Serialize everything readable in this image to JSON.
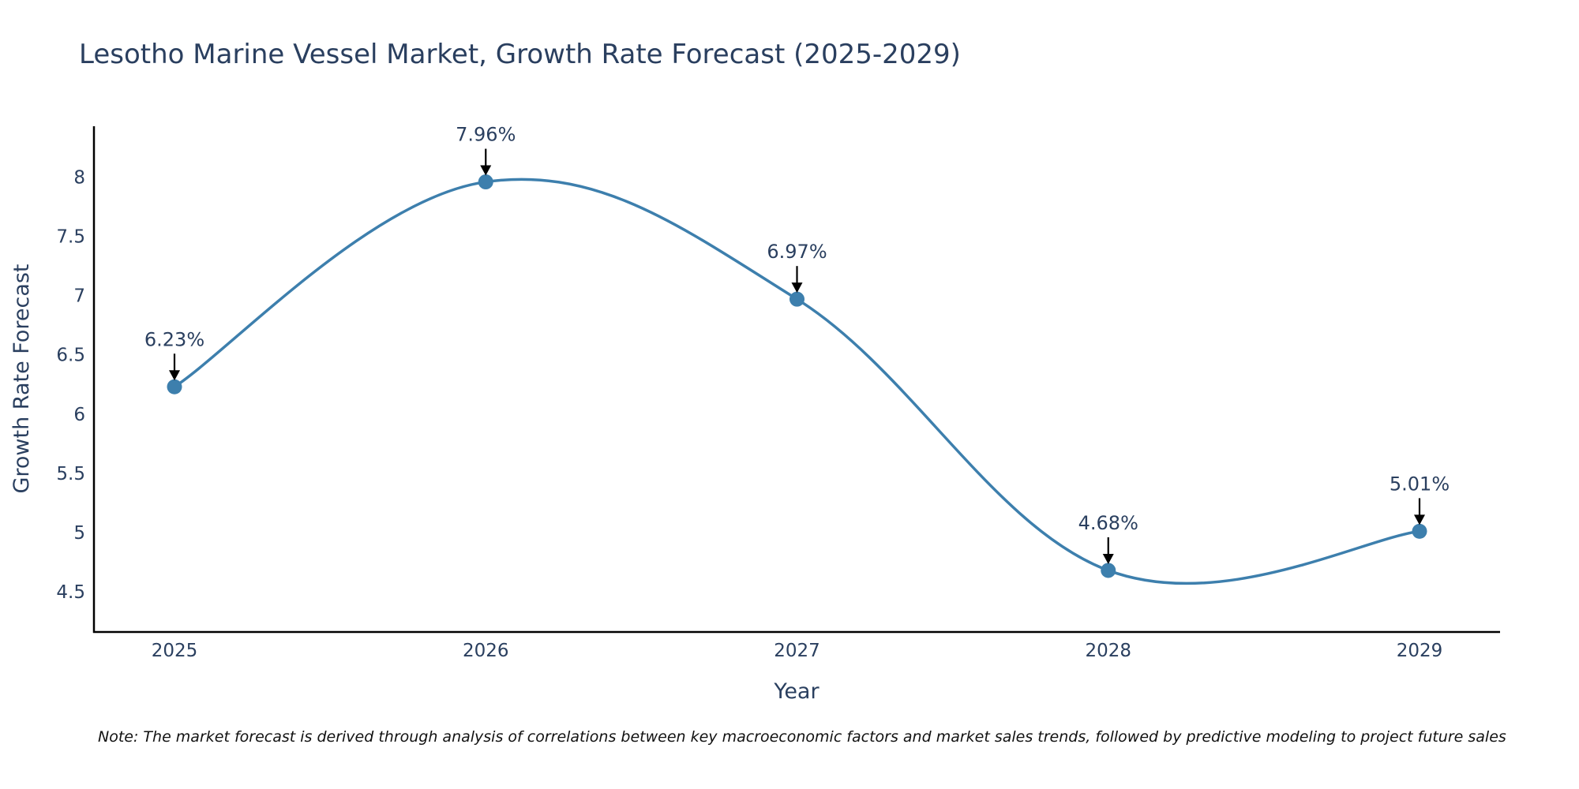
{
  "chart_data": {
    "type": "line",
    "title": "Lesotho Marine Vessel Market, Growth Rate Forecast (2025-2029)",
    "xlabel": "Year",
    "ylabel": "Growth Rate Forecast",
    "categories": [
      "2025",
      "2026",
      "2027",
      "2028",
      "2029"
    ],
    "series": [
      {
        "name": "Growth Rate Forecast",
        "values": [
          6.23,
          7.96,
          6.97,
          4.68,
          5.01
        ],
        "labels": [
          "6.23%",
          "7.96%",
          "6.97%",
          "4.68%",
          "5.01%"
        ]
      }
    ],
    "yticks": [
      4.5,
      5,
      5.5,
      6,
      6.5,
      7,
      7.5,
      8
    ],
    "ytick_labels": [
      "4.5",
      "5",
      "5.5",
      "6",
      "6.5",
      "7",
      "7.5",
      "8"
    ],
    "ylim": [
      4.16,
      8.43
    ],
    "line_color": "#3d7fad",
    "marker_color": "#3d7fad",
    "grid": false,
    "line_shape": "spline",
    "note": "Note: The market forecast is derived through analysis of correlations between key macroeconomic factors and market sales trends, followed by predictive modeling to project future sales"
  }
}
